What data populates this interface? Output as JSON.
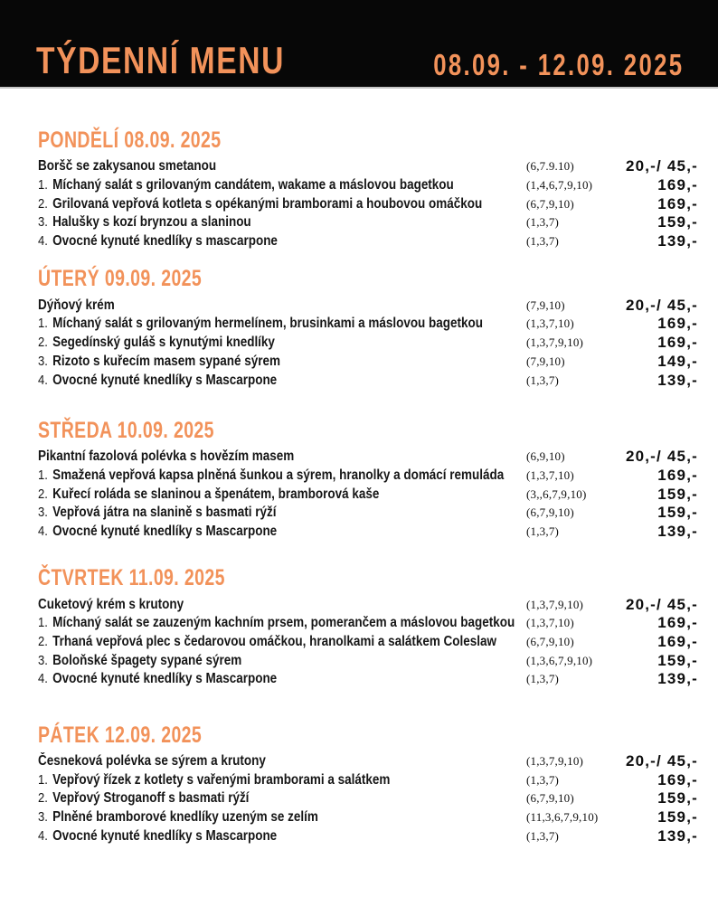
{
  "header": {
    "title": "TÝDENNÍ MENU",
    "date_range": "08.09. - 12.09. 2025",
    "background": "#070707",
    "accent": "#f2925a"
  },
  "days": [
    {
      "title": "PONDĚLÍ 08.09. 2025",
      "rows": [
        {
          "num": "",
          "name": "Boršč se zakysanou smetanou",
          "allergens": "(6,7.9.10)",
          "price": "20,-/ 45,-"
        },
        {
          "num": "1.",
          "name": "Míchaný salát s grilovaným candátem, wakame a máslovou bagetkou",
          "allergens": "(1,4,6,7,9,10)",
          "price": "169,-"
        },
        {
          "num": "2.",
          "name": "Grilovaná vepřová kotleta s opékanými bramborami a houbovou omáčkou",
          "allergens": "(6,7,9,10)",
          "price": "169,-"
        },
        {
          "num": "3.",
          "name": "Halušky s kozí brynzou a slaninou",
          "allergens": "(1,3,7)",
          "price": "159,-"
        },
        {
          "num": "4.",
          "name": "Ovocné kynuté knedlíky s mascarpone",
          "allergens": "(1,3,7)",
          "price": "139,-"
        }
      ]
    },
    {
      "title": "ÚTERÝ 09.09. 2025",
      "rows": [
        {
          "num": "",
          "name": "Dýňový krém",
          "allergens": "(7,9,10)",
          "price": "20,-/ 45,-"
        },
        {
          "num": "1.",
          "name": "Míchaný salát s grilovaným hermelínem, brusinkami a máslovou bagetkou",
          "allergens": "(1,3,7,10)",
          "price": "169,-"
        },
        {
          "num": "2.",
          "name": "Segedínský guláš s kynutými knedlíky",
          "allergens": "(1,3,7,9,10)",
          "price": "169,-"
        },
        {
          "num": "3.",
          "name": "Rizoto s kuřecím masem sypané sýrem",
          "allergens": "(7,9,10)",
          "price": "149,-"
        },
        {
          "num": "4.",
          "name": "Ovocné kynuté knedlíky s Mascarpone",
          "allergens": "(1,3,7)",
          "price": "139,-"
        }
      ]
    },
    {
      "title": "STŘEDA 10.09. 2025",
      "rows": [
        {
          "num": "",
          "name": "Pikantní fazolová polévka s hovězím masem",
          "allergens": "(6,9,10)",
          "price": "20,-/ 45,-"
        },
        {
          "num": "1.",
          "name": "Smažená vepřová kapsa plněná šunkou a sýrem, hranolky a domácí remuláda",
          "allergens": "(1,3,7,10)",
          "price": "169,-"
        },
        {
          "num": "2.",
          "name": "Kuřecí roláda se slaninou a špenátem, bramborová kaše",
          "allergens": "(3,,6,7,9,10)",
          "price": "159,-"
        },
        {
          "num": "3.",
          "name": "Vepřová játra na slanině s basmati rýží",
          "allergens": "(6,7,9,10)",
          "price": "159,-"
        },
        {
          "num": "4.",
          "name": "Ovocné kynuté knedlíky s Mascarpone",
          "allergens": "(1,3,7)",
          "price": "139,-"
        }
      ]
    },
    {
      "title": "ČTVRTEK 11.09. 2025",
      "rows": [
        {
          "num": "",
          "name": "Cuketový krém s krutony",
          "allergens": "(1,3,7,9,10)",
          "price": "20,-/ 45,-"
        },
        {
          "num": "1.",
          "name": "Míchaný salát se zauzeným kachním prsem, pomerančem a máslovou bagetkou",
          "allergens": "(1,3,7,10)",
          "price": "169,-"
        },
        {
          "num": "2.",
          "name": "Trhaná vepřová plec s čedarovou omáčkou, hranolkami a salátkem Coleslaw",
          "allergens": "(6,7,9,10)",
          "price": "169,-"
        },
        {
          "num": "3.",
          "name": "Boloňské špagety sypané sýrem",
          "allergens": "(1,3,6,7,9,10)",
          "price": "159,-"
        },
        {
          "num": "4.",
          "name": "Ovocné kynuté knedlíky s Mascarpone",
          "allergens": "(1,3,7)",
          "price": "139,-"
        }
      ]
    },
    {
      "title": "PÁTEK 12.09. 2025",
      "rows": [
        {
          "num": "",
          "name": "Česneková polévka se sýrem a krutony",
          "allergens": "(1,3,7,9,10)",
          "price": "20,-/ 45,-"
        },
        {
          "num": "1.",
          "name": "Vepřový řízek z kotlety s vařenými bramborami a salátkem",
          "allergens": "(1,3,7)",
          "price": "169,-"
        },
        {
          "num": "2.",
          "name": "Vepřový Stroganoff s basmati rýží",
          "allergens": "(6,7,9,10)",
          "price": "159,-"
        },
        {
          "num": "3.",
          "name": "Plněné bramborové knedlíky uzeným se zelím",
          "allergens": "(11,3,6,7,9,10)",
          "price": "159,-"
        },
        {
          "num": "4.",
          "name": "Ovocné kynuté knedlíky s Mascarpone",
          "allergens": "(1,3,7)",
          "price": "139,-"
        }
      ]
    }
  ]
}
